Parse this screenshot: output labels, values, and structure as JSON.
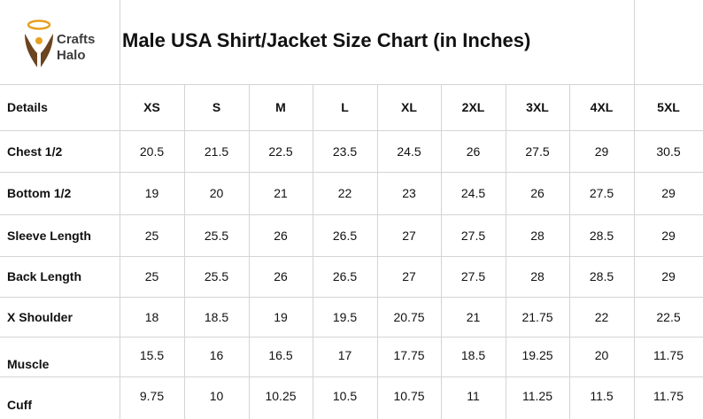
{
  "logo": {
    "line1": "Crafts",
    "line2": "Halo"
  },
  "title": "Male USA Shirt/Jacket Size Chart (in Inches)",
  "table": {
    "header": [
      "Details",
      "XS",
      "S",
      "M",
      "L",
      "XL",
      "2XL",
      "3XL",
      "4XL",
      "5XL"
    ],
    "rows": [
      [
        "Chest 1/2",
        "20.5",
        "21.5",
        "22.5",
        "23.5",
        "24.5",
        "26",
        "27.5",
        "29",
        "30.5"
      ],
      [
        "Bottom 1/2",
        "19",
        "20",
        "21",
        "22",
        "23",
        "24.5",
        "26",
        "27.5",
        "29"
      ],
      [
        "Sleeve Length",
        "25",
        "25.5",
        "26",
        "26.5",
        "27",
        "27.5",
        "28",
        "28.5",
        "29"
      ],
      [
        "Back Length",
        "25",
        "25.5",
        "26",
        "26.5",
        "27",
        "27.5",
        "28",
        "28.5",
        "29"
      ],
      [
        "X Shoulder",
        "18",
        "18.5",
        "19",
        "19.5",
        "20.75",
        "21",
        "21.75",
        "22",
        "22.5"
      ],
      [
        "Muscle",
        "15.5",
        "16",
        "16.5",
        "17",
        "17.75",
        "18.5",
        "19.25",
        "20",
        "11.75"
      ],
      [
        "Cuff",
        "9.75",
        "10",
        "10.25",
        "10.5",
        "10.75",
        "11",
        "11.25",
        "11.5",
        "11.75"
      ]
    ]
  }
}
